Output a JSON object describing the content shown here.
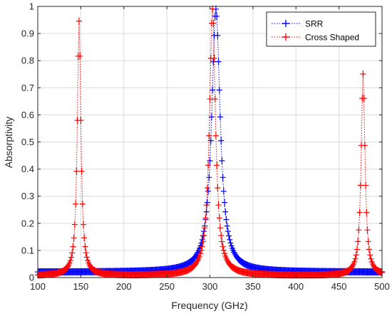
{
  "chart_data": {
    "type": "line",
    "title": "",
    "xlabel": "Frequency (GHz)",
    "ylabel": "Absorptivity",
    "xlim": [
      100,
      500
    ],
    "ylim": [
      0,
      1
    ],
    "xticks": [
      100,
      150,
      200,
      250,
      300,
      350,
      400,
      450,
      500
    ],
    "yticks": [
      0,
      0.1,
      0.2,
      0.3,
      0.4,
      0.5,
      0.6,
      0.7,
      0.8,
      0.9,
      1
    ],
    "grid": true,
    "legend_position": "top-right",
    "x_step": 1,
    "series": [
      {
        "name": "SRR",
        "color": "#0000ff",
        "marker": "plus",
        "linestyle": "dotted",
        "peaks": [
          {
            "x": 307,
            "y": 0.99,
            "width": 6
          }
        ],
        "baseline": 0.02
      },
      {
        "name": "Cross Shaped",
        "color": "#ff0000",
        "marker": "plus",
        "linestyle": "dotted",
        "peaks": [
          {
            "x": 148,
            "y": 0.945,
            "width": 2.5
          },
          {
            "x": 303,
            "y": 0.99,
            "width": 4.2
          },
          {
            "x": 478,
            "y": 0.75,
            "width": 2.7
          }
        ],
        "baseline": 0.007
      }
    ]
  }
}
